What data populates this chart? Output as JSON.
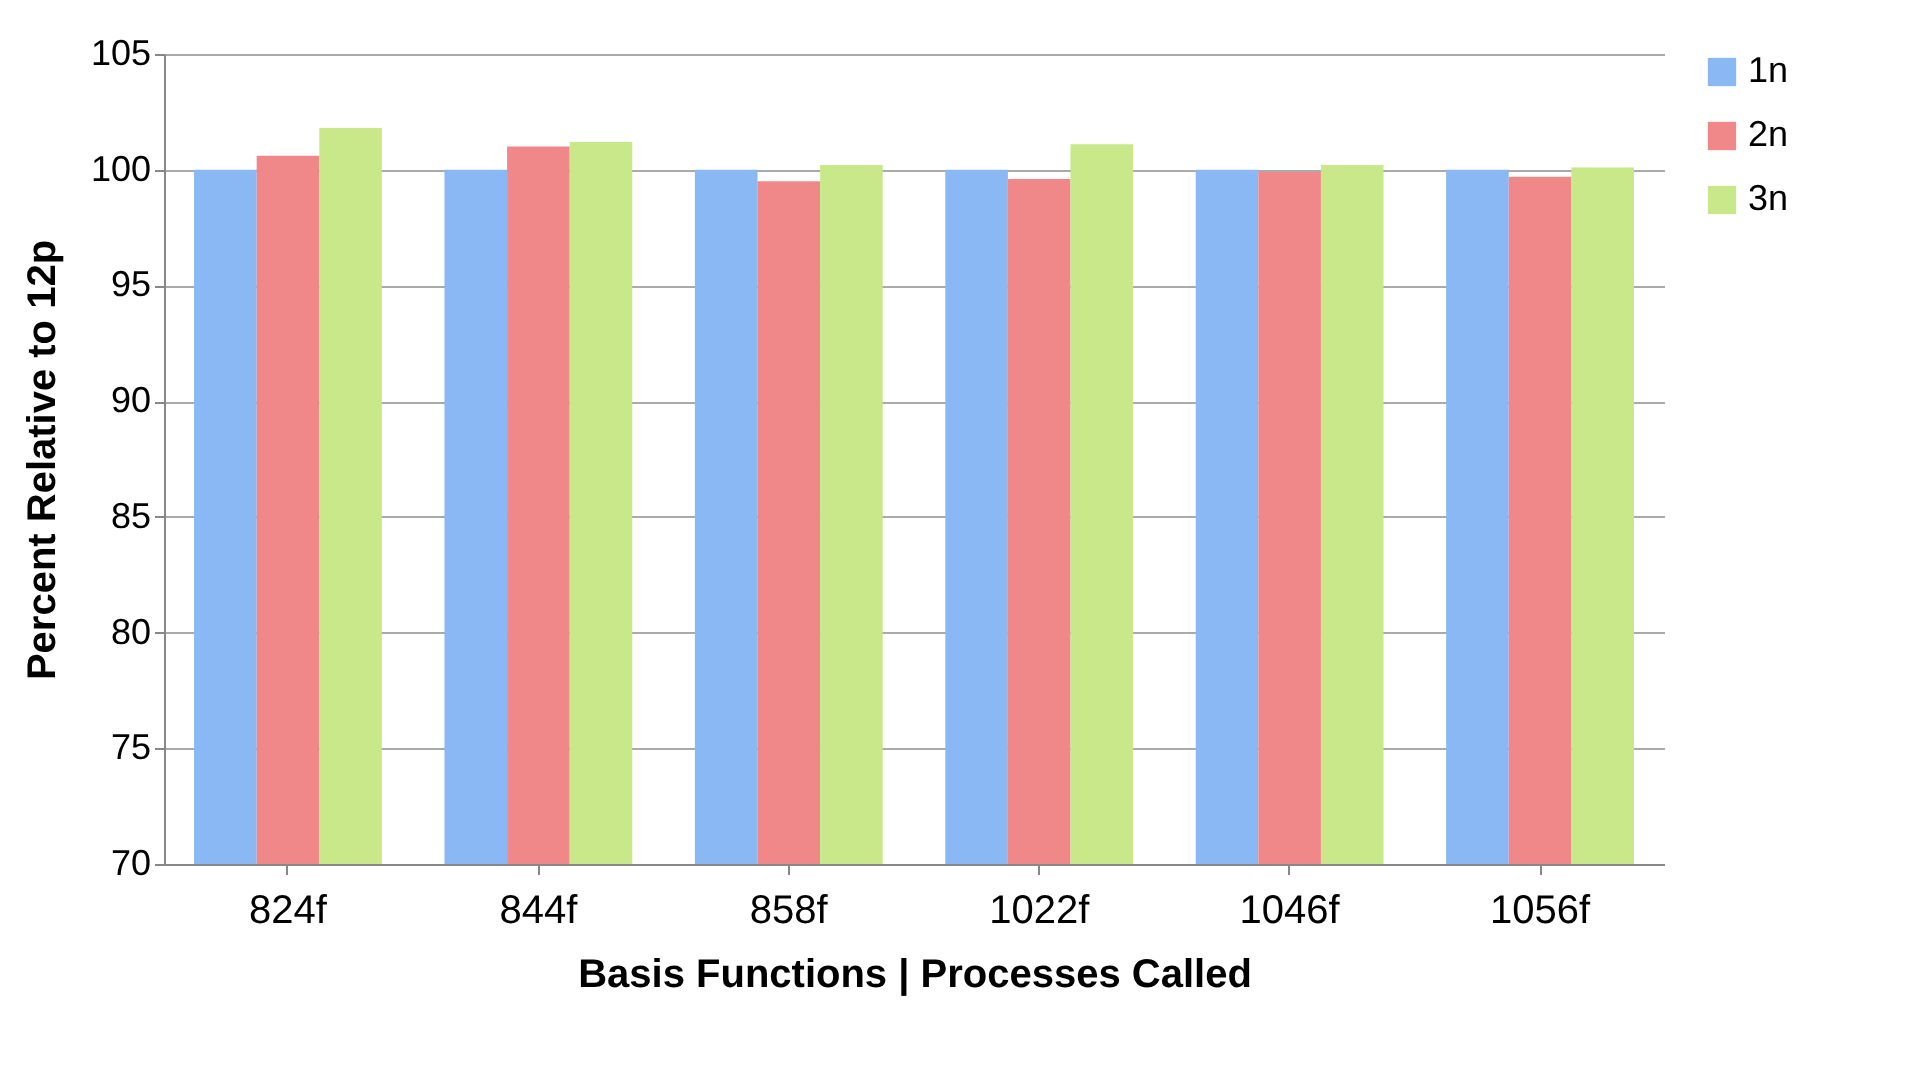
{
  "chart_data": {
    "type": "bar",
    "xlabel": "Basis Functions | Processes Called",
    "ylabel": "Percent Relative to 12p",
    "categories": [
      "824f",
      "844f",
      "858f",
      "1022f",
      "1046f",
      "1056f"
    ],
    "series": [
      {
        "name": "1n",
        "color": "#8ab8f5",
        "values": [
          100,
          100,
          100,
          100,
          100,
          100
        ]
      },
      {
        "name": "2n",
        "color": "#f0888a",
        "values": [
          100.6,
          101.0,
          99.5,
          99.6,
          99.9,
          99.7
        ]
      },
      {
        "name": "3n",
        "color": "#c8e88a",
        "values": [
          101.8,
          101.2,
          100.2,
          101.1,
          100.2,
          100.1
        ]
      }
    ],
    "ylim": [
      70,
      105
    ],
    "yticks": [
      70,
      75,
      80,
      85,
      90,
      95,
      100,
      105
    ],
    "grid": "y",
    "legend": "right"
  }
}
